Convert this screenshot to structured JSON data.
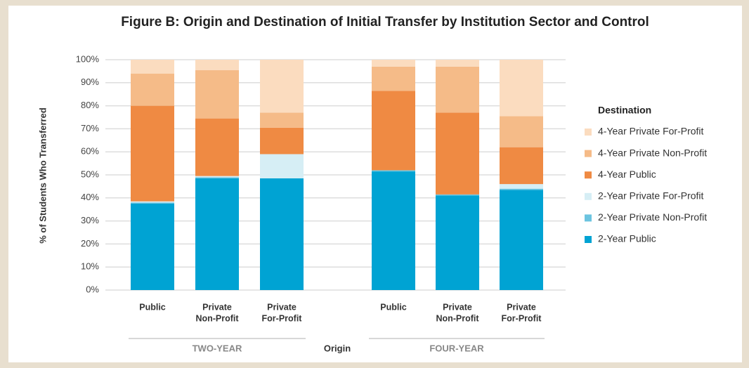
{
  "chart_data": {
    "type": "stacked_bar",
    "title": "Figure B: Origin and Destination of Initial Transfer by Institution Sector and Control",
    "ylabel": "% of Students Who Transferred",
    "xlabel": "Origin",
    "groups": [
      "TWO-YEAR",
      "FOUR-YEAR"
    ],
    "categories": [
      [
        "Public"
      ],
      [
        "Private",
        "Non-Profit"
      ],
      [
        "Private",
        "For-Profit"
      ],
      [
        "Public"
      ],
      [
        "Private",
        "Non-Profit"
      ],
      [
        "Private",
        "For-Profit"
      ]
    ],
    "legend_title": "Destination",
    "legend": "right",
    "ylim": [
      0,
      100
    ],
    "yticks": [
      {
        "value": 0,
        "label": "0%"
      },
      {
        "value": 10,
        "label": "10%"
      },
      {
        "value": 20,
        "label": "20%"
      },
      {
        "value": 30,
        "label": "30%"
      },
      {
        "value": 40,
        "label": "40%"
      },
      {
        "value": 50,
        "label": "50%"
      },
      {
        "value": 60,
        "label": "60%"
      },
      {
        "value": 70,
        "label": "70%"
      },
      {
        "value": 80,
        "label": "80%"
      },
      {
        "value": 90,
        "label": "90%"
      },
      {
        "value": 100,
        "label": "100%"
      }
    ],
    "grid": true,
    "series": [
      {
        "name": "2-Year Public",
        "color": "#00a3d3",
        "values": [
          37.5,
          48.5,
          48.5,
          51.5,
          41,
          43.5
        ]
      },
      {
        "name": "2-Year Private Non-Profit",
        "color": "#6cc4e0",
        "values": [
          0.5,
          0.5,
          0,
          0.5,
          0.5,
          0.5
        ]
      },
      {
        "name": "2-Year Private For-Profit",
        "color": "#d6eef5",
        "values": [
          0.5,
          0.5,
          10.5,
          0,
          0,
          2
        ]
      },
      {
        "name": "4-Year Public",
        "color": "#ef8a43",
        "values": [
          41.5,
          25,
          11.5,
          34.5,
          35.5,
          16
        ]
      },
      {
        "name": "4-Year Private Non-Profit",
        "color": "#f5bb88",
        "values": [
          14,
          21,
          6.5,
          10.5,
          20,
          13.5
        ]
      },
      {
        "name": "4-Year Private For-Profit",
        "color": "#fbdcbf",
        "values": [
          6,
          4.5,
          23,
          3,
          3,
          24.5
        ]
      }
    ]
  }
}
